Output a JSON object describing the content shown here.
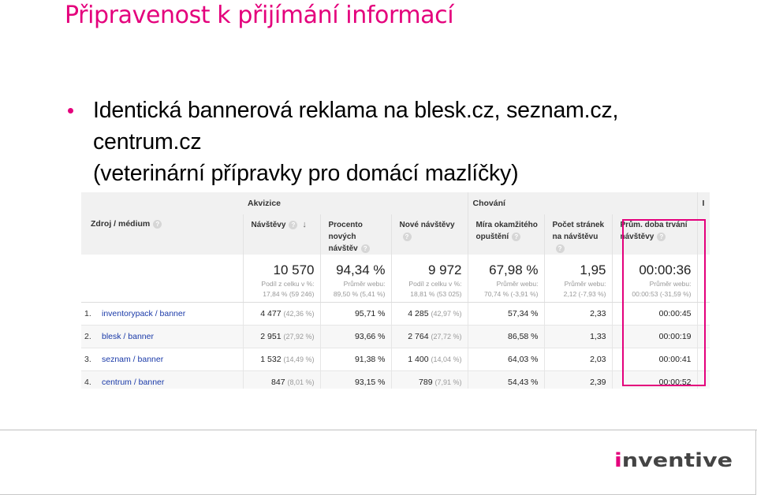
{
  "slide": {
    "title": "Připravenost k přijímání informací",
    "bullet_lines": [
      "Identická bannerová reklama na blesk.cz, seznam.cz,",
      "centrum.cz",
      "(veterinární přípravky pro domácí mazlíčky)"
    ]
  },
  "analytics": {
    "source_header": "Zdroj / médium",
    "hint_glyph": "?",
    "groups": [
      "Akvizice",
      "Chování"
    ],
    "group_edge": "I",
    "columns": [
      {
        "label": "Návštěvy",
        "sort_icon": "↓"
      },
      {
        "label": "Procento nových návštěv"
      },
      {
        "label": "Nové návštěvy"
      },
      {
        "label": "Míra okamžitého opuštění"
      },
      {
        "label": "Počet stránek na návštěvu"
      },
      {
        "label": "Prům. doba trvání návštěvy"
      }
    ],
    "summary": [
      {
        "value": "10 570",
        "note1": "Podíl z celku v %:",
        "note2": "17,84 % (59 246)"
      },
      {
        "value": "94,34 %",
        "note1": "Průměr webu:",
        "note2": "89,50 % (5,41 %)"
      },
      {
        "value": "9 972",
        "note1": "Podíl z celku v %:",
        "note2": "18,81 % (53 025)"
      },
      {
        "value": "67,98 %",
        "note1": "Průměr webu:",
        "note2": "70,74 % (-3,91 %)"
      },
      {
        "value": "1,95",
        "note1": "Průměr webu:",
        "note2": "2,12 (-7,93 %)"
      },
      {
        "value": "00:00:36",
        "note1": "Průměr webu:",
        "note2": "00:00:53 (-31,59 %)"
      }
    ],
    "rows": [
      {
        "num": "1.",
        "source": "inventorypack / banner",
        "visits": "4 477",
        "visits_pct": "(42,36 %)",
        "new_pct": "95,71 %",
        "new_visits": "4 285",
        "new_visits_pct": "(42,97 %)",
        "bounce": "57,34 %",
        "pages": "2,33",
        "duration": "00:00:45"
      },
      {
        "num": "2.",
        "source": "blesk / banner",
        "visits": "2 951",
        "visits_pct": "(27,92 %)",
        "new_pct": "93,66 %",
        "new_visits": "2 764",
        "new_visits_pct": "(27,72 %)",
        "bounce": "86,58 %",
        "pages": "1,33",
        "duration": "00:00:19"
      },
      {
        "num": "3.",
        "source": "seznam / banner",
        "visits": "1 532",
        "visits_pct": "(14,49 %)",
        "new_pct": "91,38 %",
        "new_visits": "1 400",
        "new_visits_pct": "(14,04 %)",
        "bounce": "64,03 %",
        "pages": "2,03",
        "duration": "00:00:41"
      },
      {
        "num": "4.",
        "source": "centrum / banner",
        "visits": "847",
        "visits_pct": "(8,01 %)",
        "new_pct": "93,15 %",
        "new_visits": "789",
        "new_visits_pct": "(7,91 %)",
        "bounce": "54,43 %",
        "pages": "2,39",
        "duration": "00:00:52"
      }
    ]
  },
  "footer": {
    "logo_text": "inventive",
    "logo_color": "#e4007c",
    "text_color": "#444444"
  }
}
